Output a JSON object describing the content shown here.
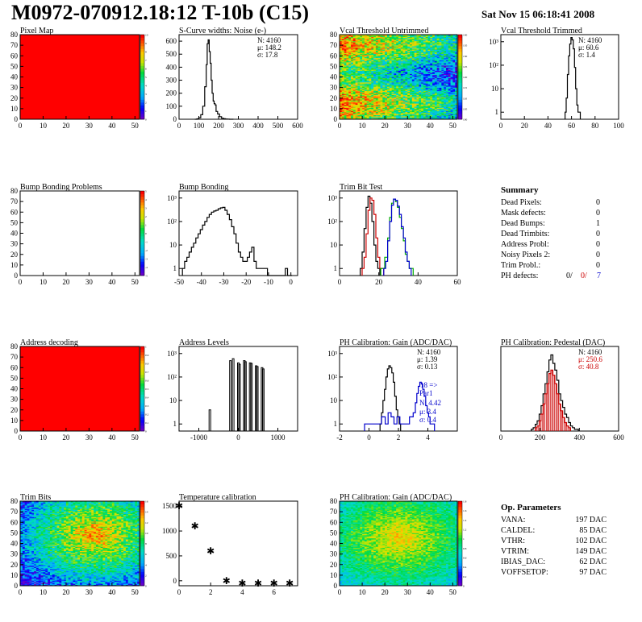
{
  "header": {
    "title": "M0972-070912.18:12 T-10b (C15)",
    "date": "Sat Nov 15 06:18:41 2008"
  },
  "summary": {
    "title": "Summary",
    "rows": [
      {
        "label": "Dead Pixels:",
        "value": "0"
      },
      {
        "label": "Mask defects:",
        "value": "0"
      },
      {
        "label": "Dead Bumps:",
        "value": "1"
      },
      {
        "label": "Dead Trimbits:",
        "value": "0"
      },
      {
        "label": "Address Probl:",
        "value": "0"
      },
      {
        "label": "Noisy Pixels 2:",
        "value": "0"
      },
      {
        "label": "Trim Probl.:",
        "value": "0"
      }
    ],
    "ph_defects": {
      "label": "PH defects:",
      "v1": "0/",
      "v2": "0/",
      "v3": "7",
      "colors": [
        "#000000",
        "#cc0000",
        "#0000cc"
      ]
    }
  },
  "op_params": {
    "title": "Op. Parameters",
    "rows": [
      {
        "label": "VANA:",
        "value": "197 DAC"
      },
      {
        "label": "CALDEL:",
        "value": "85 DAC"
      },
      {
        "label": "VTHR:",
        "value": "102 DAC"
      },
      {
        "label": "VTRIM:",
        "value": "149 DAC"
      },
      {
        "label": "IBIAS_DAC:",
        "value": "62 DAC"
      },
      {
        "label": "VOFFSETOP:",
        "value": "97 DAC"
      }
    ]
  },
  "chart_data": [
    {
      "id": "pixel-map",
      "type": "heatmap",
      "title": "Pixel Map",
      "xlim": [
        0,
        52
      ],
      "ylim": [
        0,
        80
      ],
      "xticks": [
        0,
        10,
        20,
        30,
        40,
        50
      ],
      "yticks": [
        0,
        10,
        20,
        30,
        40,
        50,
        60,
        70,
        80
      ],
      "pattern": "uniform",
      "palette": "red",
      "zlim": [
        0,
        10
      ],
      "zticks": [
        0,
        1,
        2,
        3,
        4,
        5,
        6,
        7,
        8,
        9,
        10
      ]
    },
    {
      "id": "scurve-noise",
      "type": "histogram",
      "title": "S-Curve widths: Noise (e-)",
      "xlim": [
        0,
        600
      ],
      "ylim": [
        0,
        650
      ],
      "xticks": [
        0,
        100,
        200,
        300,
        400,
        500,
        600
      ],
      "yticks": [
        0,
        100,
        200,
        300,
        400,
        500,
        600
      ],
      "stats": [
        "N: 4160",
        "μ: 148.2",
        "σ: 17.8"
      ],
      "series": [
        {
          "color": "#000000",
          "x": [
            85,
            95,
            105,
            115,
            125,
            135,
            140,
            145,
            150,
            155,
            160,
            165,
            170,
            175,
            180,
            185,
            190,
            200,
            210,
            220,
            230,
            240,
            250,
            260,
            270
          ],
          "values": [
            0,
            3,
            12,
            35,
            100,
            250,
            420,
            580,
            610,
            520,
            430,
            300,
            200,
            140,
            120,
            110,
            60,
            40,
            20,
            8,
            4,
            2,
            1,
            0,
            0
          ]
        }
      ]
    },
    {
      "id": "vcal-untrimmed",
      "type": "heatmap",
      "title": "Vcal Threshold Untrimmed",
      "xlim": [
        0,
        52
      ],
      "ylim": [
        0,
        80
      ],
      "xticks": [
        0,
        10,
        20,
        30,
        40,
        50
      ],
      "yticks": [
        0,
        10,
        20,
        30,
        40,
        50,
        60,
        70,
        80
      ],
      "pattern": "threshold",
      "palette": "rainbow",
      "zlim": [
        100,
        140
      ],
      "zticks": [
        100,
        105,
        110,
        115,
        120,
        125,
        130,
        135,
        140
      ]
    },
    {
      "id": "vcal-trimmed",
      "type": "histogram",
      "title": "Vcal Threshold Trimmed",
      "log": true,
      "xlim": [
        0,
        100
      ],
      "ylim": [
        0.5,
        2000
      ],
      "xticks": [
        0,
        20,
        40,
        60,
        80,
        100
      ],
      "ylogticks": [
        1,
        10,
        100,
        1000
      ],
      "stats": [
        "N: 4160",
        "μ: 60.6",
        "σ: 1.4"
      ],
      "series": [
        {
          "color": "#000000",
          "x": [
            55,
            56,
            57,
            58,
            59,
            60,
            61,
            62,
            63,
            64,
            65,
            66,
            67
          ],
          "values": [
            1,
            4,
            40,
            250,
            800,
            1500,
            1200,
            500,
            80,
            10,
            2,
            1,
            1
          ]
        }
      ]
    },
    {
      "id": "bump-problems",
      "type": "heatmap",
      "title": "Bump Bonding Problems",
      "xlim": [
        0,
        52
      ],
      "ylim": [
        0,
        80
      ],
      "xticks": [
        0,
        10,
        20,
        30,
        40,
        50
      ],
      "yticks": [
        0,
        10,
        20,
        30,
        40,
        50,
        60,
        70,
        80
      ],
      "pattern": "empty",
      "palette": "rainbow",
      "zlim": [
        -5,
        5
      ],
      "zticks": [
        -5,
        -4,
        -3,
        -2,
        -1,
        0,
        1,
        2,
        3,
        4,
        5
      ]
    },
    {
      "id": "bump-bonding",
      "type": "histogram",
      "title": "Bump Bonding",
      "log": true,
      "xlim": [
        -50,
        3
      ],
      "ylim": [
        0.5,
        2000
      ],
      "xticks": [
        -50,
        -40,
        -30,
        -20,
        -10,
        0
      ],
      "ylogticks": [
        1,
        10,
        100,
        1000
      ],
      "series": [
        {
          "color": "#000000",
          "x": [
            -48,
            -47,
            -46,
            -45,
            -44,
            -43,
            -42,
            -41,
            -40,
            -39,
            -38,
            -37,
            -36,
            -35,
            -34,
            -33,
            -32,
            -31,
            -30,
            -29,
            -28,
            -27,
            -26,
            -25,
            -24,
            -23,
            -22,
            -21,
            -20,
            -19,
            -18,
            -17,
            -16,
            -15,
            -14,
            -13,
            -12,
            -11,
            -10,
            -9,
            -8,
            -7,
            -6,
            -5,
            -4,
            -3,
            -2,
            -1,
            0
          ],
          "values": [
            1,
            2,
            3,
            5,
            8,
            12,
            20,
            30,
            45,
            70,
            100,
            150,
            200,
            250,
            280,
            300,
            350,
            380,
            400,
            300,
            200,
            120,
            60,
            30,
            12,
            5,
            3,
            2,
            2,
            3,
            5,
            8,
            2,
            1,
            1,
            1,
            1,
            1,
            0,
            0,
            0,
            0,
            0,
            0,
            0,
            0,
            1,
            0,
            0
          ]
        }
      ]
    },
    {
      "id": "trim-bit-test",
      "type": "histogram",
      "title": "Trim Bit Test",
      "log": true,
      "xlim": [
        0,
        60
      ],
      "ylim": [
        0.5,
        2000
      ],
      "xticks": [
        0,
        20,
        40,
        60
      ],
      "ylogticks": [
        1,
        10,
        100,
        1000
      ],
      "series": [
        {
          "name": "",
          "color": "#000000",
          "x": [
            11,
            12,
            13,
            14,
            15,
            16,
            17,
            18,
            19,
            20
          ],
          "values": [
            1,
            5,
            50,
            400,
            1200,
            600,
            100,
            10,
            2,
            1
          ]
        },
        {
          "name": "",
          "color": "#cc0000",
          "x": [
            12,
            13,
            14,
            15,
            16,
            17,
            18,
            19,
            20,
            21,
            22
          ],
          "values": [
            1,
            3,
            30,
            300,
            1000,
            800,
            200,
            20,
            3,
            1,
            1
          ]
        },
        {
          "name": "",
          "color": "#00aa00",
          "x": [
            22,
            24,
            25,
            26,
            27,
            28,
            29,
            30,
            31,
            32,
            33,
            34,
            35,
            36,
            37
          ],
          "values": [
            1,
            3,
            20,
            150,
            600,
            900,
            700,
            400,
            150,
            50,
            15,
            4,
            2,
            1,
            1
          ]
        },
        {
          "name": "",
          "color": "#0000cc",
          "x": [
            23,
            24,
            25,
            26,
            27,
            28,
            29,
            30,
            31,
            32,
            33,
            34,
            35,
            36
          ],
          "values": [
            1,
            2,
            15,
            100,
            500,
            900,
            800,
            450,
            200,
            60,
            20,
            5,
            2,
            1
          ]
        }
      ]
    },
    {
      "id": "address-decoding",
      "type": "heatmap",
      "title": "Address decoding",
      "xlim": [
        0,
        52
      ],
      "ylim": [
        0,
        80
      ],
      "xticks": [
        0,
        10,
        20,
        30,
        40,
        50
      ],
      "yticks": [
        0,
        10,
        20,
        30,
        40,
        50,
        60,
        70,
        80
      ],
      "pattern": "uniform",
      "palette": "red",
      "zlim": [
        0,
        1
      ],
      "zticks": [
        0,
        0.1,
        0.2,
        0.3,
        0.4,
        0.5,
        0.6,
        0.7,
        0.8,
        0.9,
        1
      ]
    },
    {
      "id": "address-levels",
      "type": "histogram",
      "title": "Address Levels",
      "log": true,
      "xlim": [
        -1500,
        1500
      ],
      "ylim": [
        0.5,
        2000
      ],
      "xticks": [
        -1000,
        0,
        1000
      ],
      "ylogticks": [
        1,
        10,
        100,
        1000
      ],
      "spikes": [
        {
          "x": -720,
          "v": 4
        },
        {
          "x": -200,
          "v": 500
        },
        {
          "x": -130,
          "v": 600
        },
        {
          "x": 0,
          "v": 400
        },
        {
          "x": 30,
          "v": 350
        },
        {
          "x": 150,
          "v": 500
        },
        {
          "x": 180,
          "v": 450
        },
        {
          "x": 300,
          "v": 400
        },
        {
          "x": 330,
          "v": 380
        },
        {
          "x": 450,
          "v": 300
        },
        {
          "x": 480,
          "v": 280
        },
        {
          "x": 600,
          "v": 250
        },
        {
          "x": 630,
          "v": 220
        }
      ]
    },
    {
      "id": "ph-gain-hist",
      "type": "histogram",
      "title": "PH Calibration: Gain (ADC/DAC)",
      "log": true,
      "xlim": [
        -2,
        6
      ],
      "ylim": [
        0.5,
        2000
      ],
      "xticks": [
        -2,
        0,
        2,
        4
      ],
      "ylogticks": [
        1,
        10,
        100,
        1000
      ],
      "stats": [
        "N: 4160",
        "μ: 1.39",
        "σ: 0.13"
      ],
      "annotations": [
        "18 =>",
        "Par1",
        "N: 4.42",
        "μ: 3.4",
        "σ: 0.4"
      ],
      "series": [
        {
          "color": "#000000",
          "x": [
            0.8,
            0.9,
            1.0,
            1.1,
            1.2,
            1.3,
            1.4,
            1.5,
            1.6,
            1.7,
            1.8,
            1.9,
            2.0,
            2.1
          ],
          "values": [
            1,
            3,
            10,
            30,
            100,
            220,
            300,
            250,
            150,
            60,
            15,
            4,
            2,
            1
          ]
        },
        {
          "color": "#0000cc",
          "x": [
            -0.2,
            0.0,
            0.3,
            0.7,
            1.0,
            1.2,
            1.4,
            1.6,
            1.8,
            2.0,
            2.2,
            2.6,
            2.9,
            3.1,
            3.2,
            3.3,
            3.4,
            3.5,
            3.6,
            3.7,
            3.8,
            3.9,
            4.0,
            4.1,
            4.2,
            4.3,
            4.4
          ],
          "values": [
            1,
            1,
            1,
            1,
            2,
            1,
            3,
            2,
            1,
            2,
            1,
            1,
            2,
            3,
            8,
            20,
            40,
            60,
            50,
            30,
            15,
            6,
            3,
            2,
            1,
            1,
            1
          ]
        }
      ]
    },
    {
      "id": "ph-pedestal",
      "type": "histogram",
      "title": "PH Calibration: Pedestal (DAC)",
      "xlim": [
        0,
        600
      ],
      "ylim": [
        0,
        50
      ],
      "xticks": [
        0,
        200,
        400,
        600
      ],
      "stats": [
        "N: 4160",
        "μ: 250.6",
        "σ: 40.8"
      ],
      "series": [
        {
          "color": "#000000",
          "x": [
            160,
            170,
            180,
            190,
            200,
            210,
            220,
            230,
            240,
            250,
            260,
            270,
            280,
            290,
            300,
            310,
            320,
            330,
            340,
            350,
            360,
            370,
            380,
            390
          ],
          "values": [
            1,
            2,
            4,
            6,
            10,
            15,
            22,
            28,
            35,
            42,
            45,
            40,
            36,
            30,
            22,
            18,
            14,
            10,
            8,
            5,
            3,
            2,
            1,
            1
          ]
        },
        {
          "color": "#cc0000",
          "fill": true,
          "x": [
            180,
            190,
            200,
            210,
            220,
            230,
            240,
            250,
            260,
            270,
            280,
            290,
            300,
            310,
            320,
            330,
            340,
            350
          ],
          "values": [
            2,
            3,
            6,
            10,
            16,
            22,
            28,
            34,
            36,
            33,
            28,
            22,
            16,
            12,
            8,
            5,
            3,
            2
          ]
        }
      ]
    },
    {
      "id": "trim-bits",
      "type": "heatmap",
      "title": "Trim Bits",
      "xlim": [
        0,
        52
      ],
      "ylim": [
        0,
        80
      ],
      "xticks": [
        0,
        10,
        20,
        30,
        40,
        50
      ],
      "yticks": [
        0,
        10,
        20,
        30,
        40,
        50,
        60,
        70,
        80
      ],
      "pattern": "trim",
      "palette": "rainbow",
      "zlim": [
        0,
        16
      ],
      "zticks": [
        0,
        2,
        4,
        6,
        8,
        10,
        12,
        14,
        16
      ]
    },
    {
      "id": "temperature",
      "type": "scatter",
      "title": "Temperature calibration",
      "xlim": [
        0,
        7.5
      ],
      "ylim": [
        -100,
        1600
      ],
      "xticks": [
        0,
        2,
        4,
        6
      ],
      "yticks": [
        0,
        500,
        1000,
        1500
      ],
      "points": [
        {
          "x": 0,
          "y": 1500
        },
        {
          "x": 1,
          "y": 1100
        },
        {
          "x": 2,
          "y": 600
        },
        {
          "x": 3,
          "y": 0
        },
        {
          "x": 4,
          "y": -50
        },
        {
          "x": 5,
          "y": -50
        },
        {
          "x": 6,
          "y": -50
        },
        {
          "x": 7,
          "y": -50
        }
      ]
    },
    {
      "id": "ph-gain-map",
      "type": "heatmap",
      "title": "PH Calibration: Gain (ADC/DAC)",
      "xlim": [
        0,
        52
      ],
      "ylim": [
        0,
        80
      ],
      "xticks": [
        0,
        10,
        20,
        30,
        40,
        50
      ],
      "yticks": [
        0,
        10,
        20,
        30,
        40,
        50,
        60,
        70,
        80
      ],
      "pattern": "gain",
      "palette": "rainbow",
      "zlim": [
        0,
        1.8
      ],
      "zticks": [
        0,
        0.2,
        0.4,
        0.6,
        0.8,
        1,
        1.2,
        1.4,
        1.6,
        1.8
      ]
    }
  ]
}
